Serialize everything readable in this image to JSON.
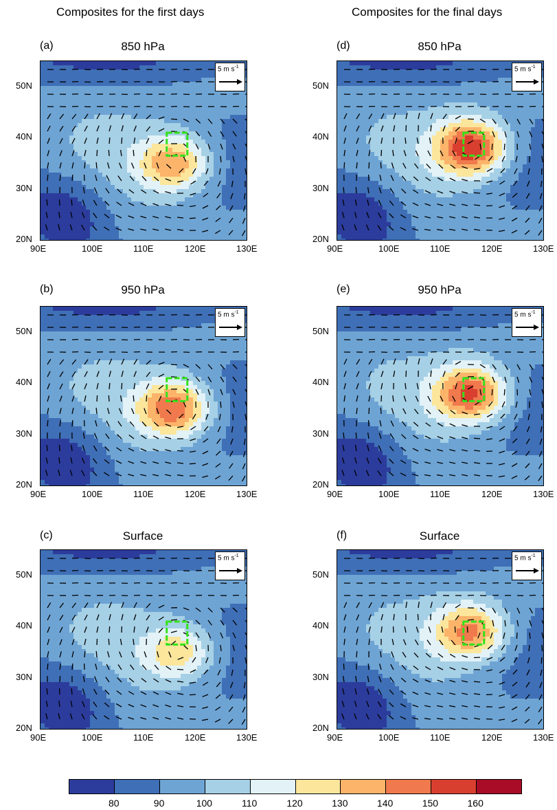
{
  "column_titles": [
    "Composites for the first days",
    "Composites for the final days"
  ],
  "panels": [
    {
      "letter": "(a)",
      "title": "850 hPa",
      "hot": [
        116,
        35
      ],
      "intensity": 140
    },
    {
      "letter": "(b)",
      "title": "950 hPa",
      "hot": [
        116,
        35
      ],
      "intensity": 150
    },
    {
      "letter": "(c)",
      "title": "Surface",
      "hot": [
        117,
        35
      ],
      "intensity": 130
    },
    {
      "letter": "(d)",
      "title": "850 hPa",
      "hot": [
        116,
        38
      ],
      "intensity": 160
    },
    {
      "letter": "(e)",
      "title": "950 hPa",
      "hot": [
        116,
        38
      ],
      "intensity": 155
    },
    {
      "letter": "(f)",
      "title": "Surface",
      "hot": [
        116,
        39
      ],
      "intensity": 145
    }
  ],
  "axes": {
    "x_ticks": [
      "90E",
      "100E",
      "110E",
      "120E",
      "130E"
    ],
    "x_values": [
      90,
      100,
      110,
      120,
      130
    ],
    "y_ticks": [
      "20N",
      "30N",
      "40N",
      "50N"
    ],
    "y_values": [
      20,
      30,
      40,
      50
    ],
    "lon_range": [
      90,
      130
    ],
    "lat_range": [
      20,
      55
    ]
  },
  "region_box": {
    "lon": [
      114.5,
      118.5
    ],
    "lat": [
      36.5,
      41
    ],
    "color": "#33e21a"
  },
  "reference_vector": {
    "label": "5 m s",
    "exponent": "-1"
  },
  "colorbar": {
    "colors": [
      "#2c3c9c",
      "#3f6fb6",
      "#6ea4d4",
      "#a6d0e6",
      "#e2f2f7",
      "#fbe69c",
      "#fbb46a",
      "#f07a4d",
      "#d93f2e",
      "#a80c26"
    ],
    "labels": [
      "80",
      "90",
      "100",
      "110",
      "120",
      "130",
      "140",
      "150",
      "160"
    ]
  }
}
